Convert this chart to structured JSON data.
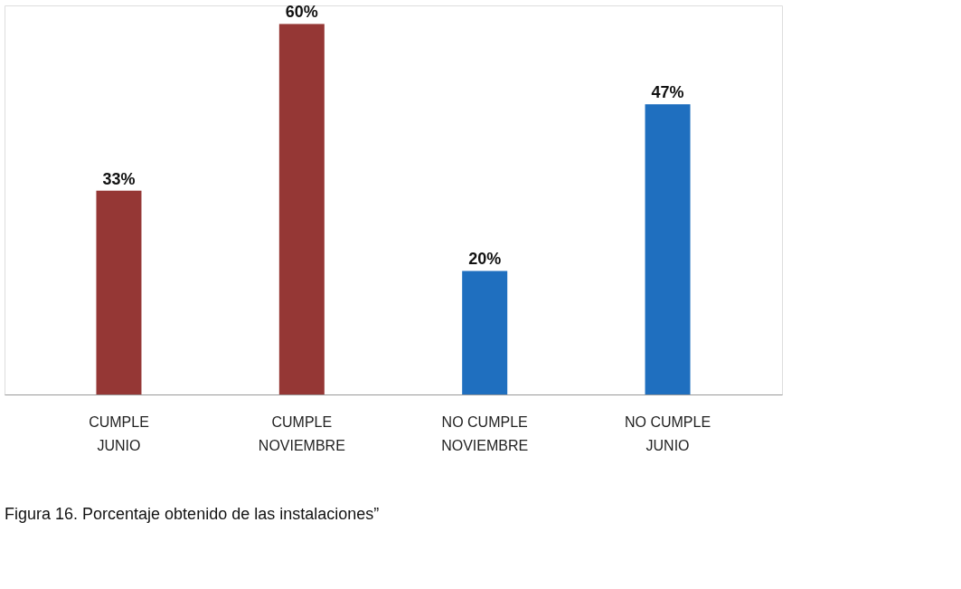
{
  "chart_data": {
    "type": "bar",
    "categories": [
      "CUMPLE\nJUNIO",
      "CUMPLE\nNOVIEMBRE",
      null,
      "NO CUMPLE\nNOVIEMBRE",
      "NO CUMPLE\nJUNIO"
    ],
    "values": [
      33,
      60,
      null,
      20,
      47
    ],
    "colors": [
      "#953735",
      "#953735",
      "#953735",
      "#1f6fbf",
      "#1f6fbf"
    ],
    "value_labels": [
      "33%",
      "60%",
      null,
      "20%",
      "47%"
    ],
    "annotations": [
      "Figura 16.  Porcentaje obtenido de las instalaciones”"
    ]
  }
}
